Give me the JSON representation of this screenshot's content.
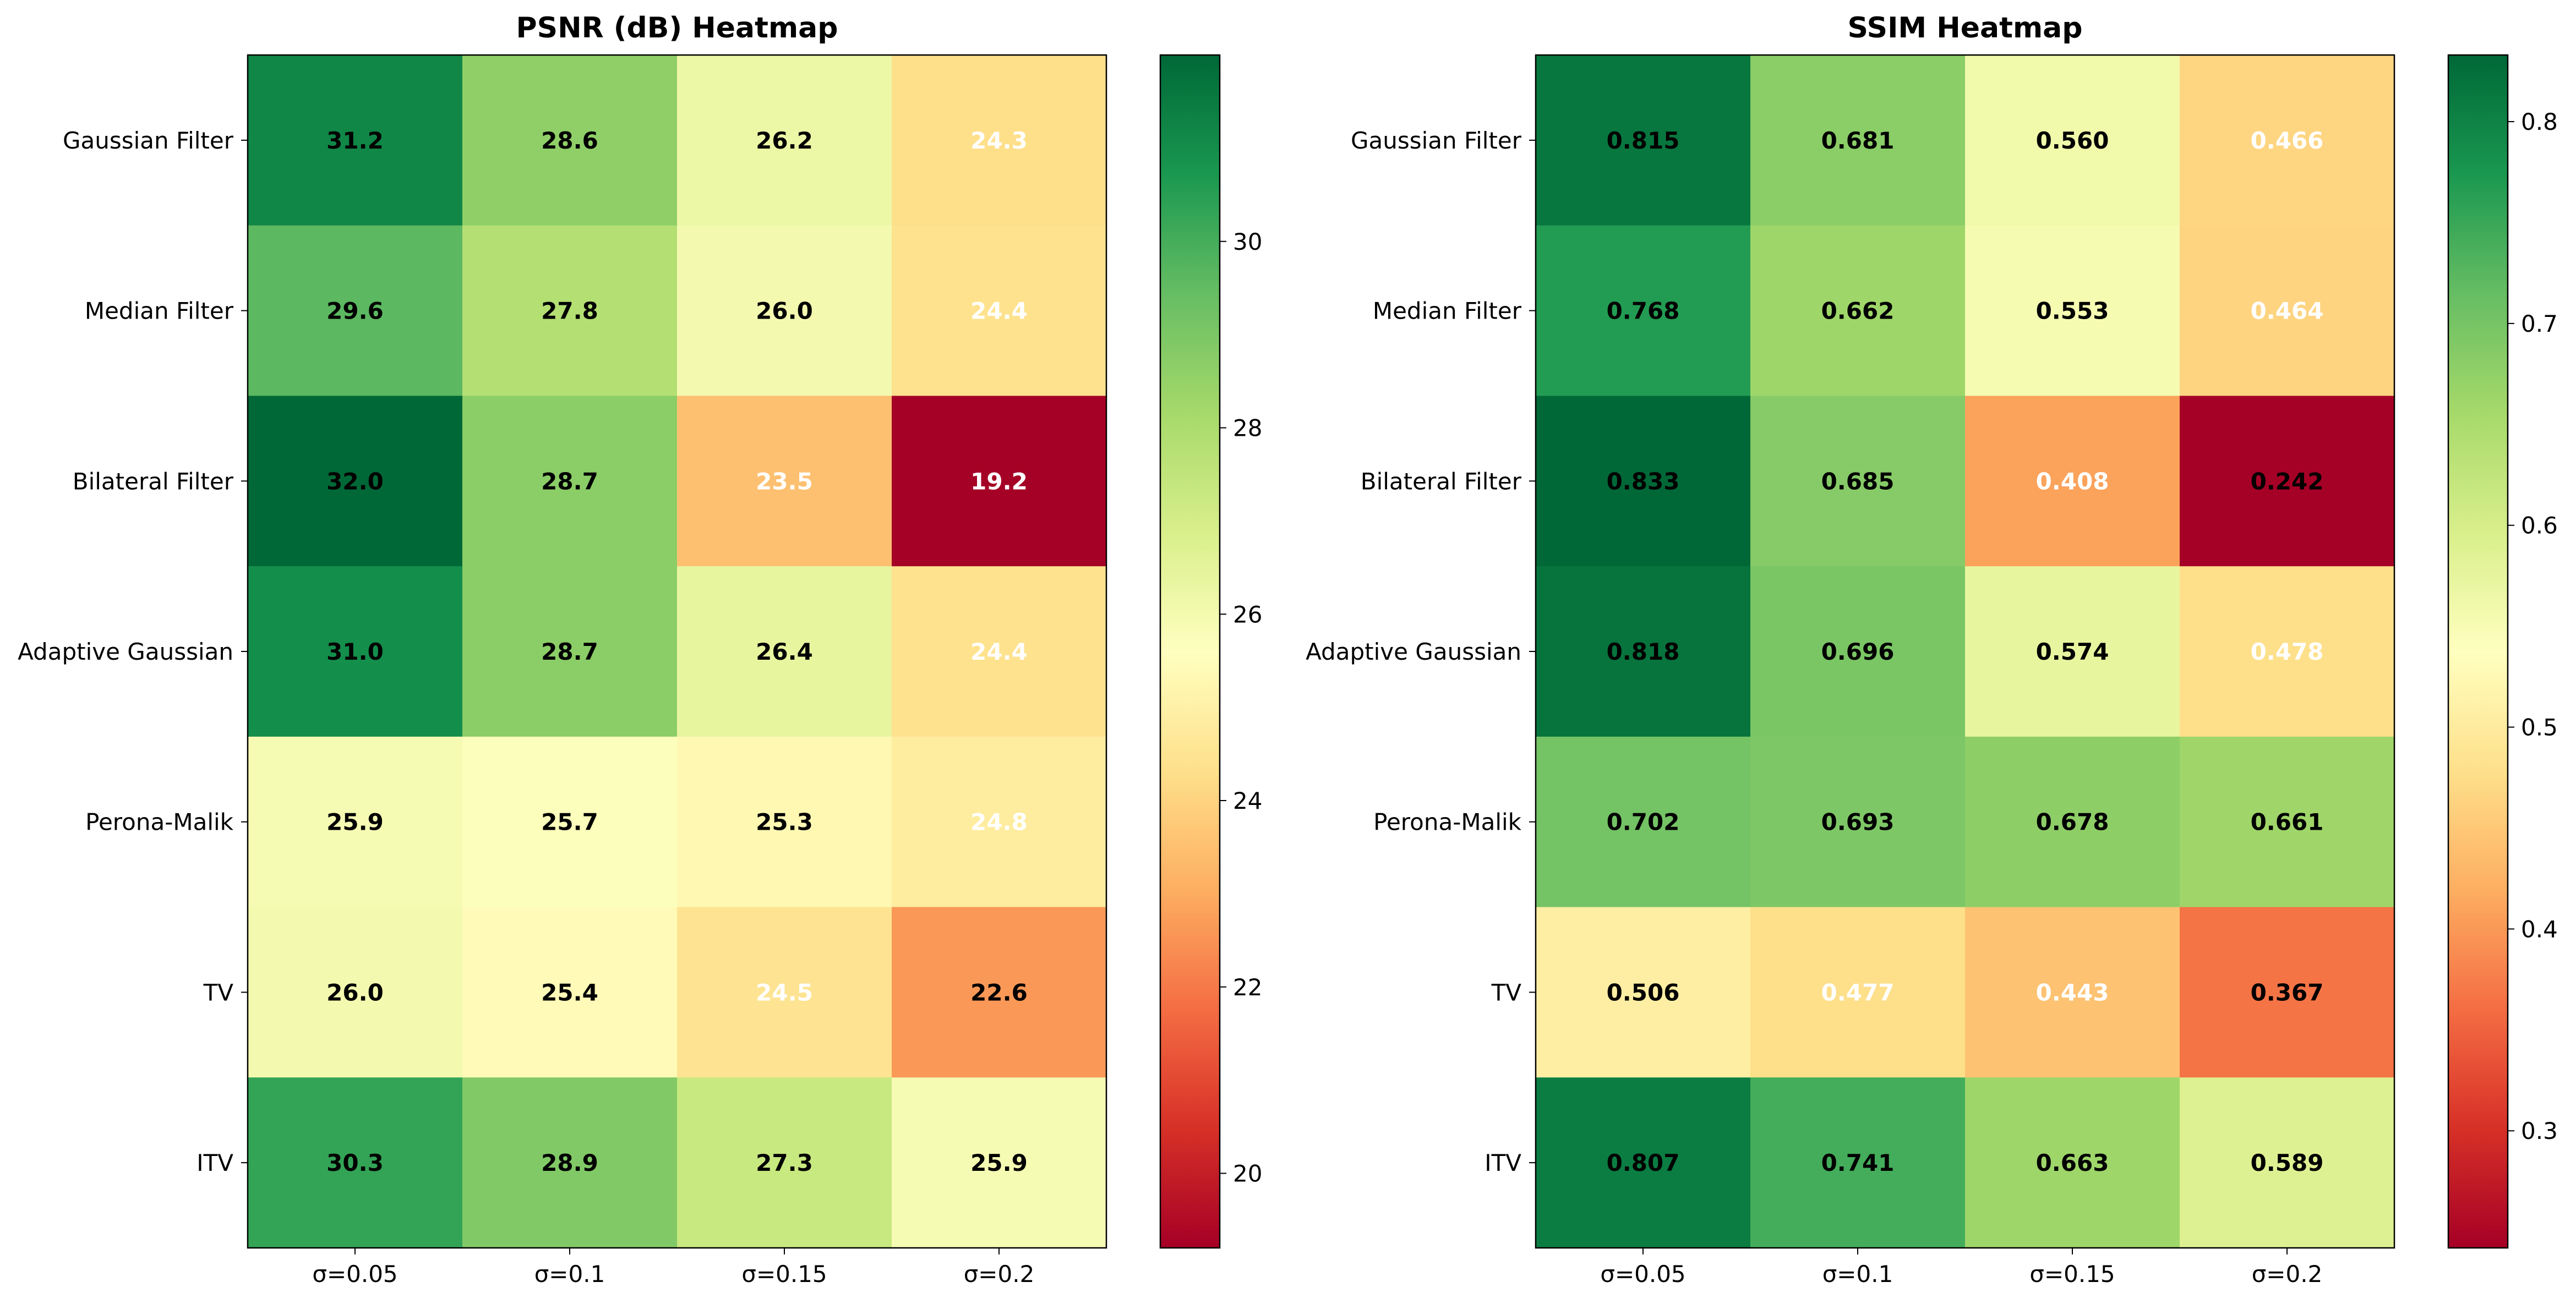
{
  "chart_data": [
    {
      "type": "heatmap",
      "title": "PSNR (dB) Heatmap",
      "rows": [
        "Gaussian Filter",
        "Median Filter",
        "Bilateral Filter",
        "Adaptive Gaussian",
        "Perona-Malik",
        "TV",
        "ITV"
      ],
      "columns": [
        "σ=0.05",
        "σ=0.1",
        "σ=0.15",
        "σ=0.2"
      ],
      "values": [
        [
          31.2,
          28.6,
          26.2,
          24.3
        ],
        [
          29.6,
          27.8,
          26.0,
          24.4
        ],
        [
          32.0,
          28.7,
          23.5,
          19.2
        ],
        [
          31.0,
          28.7,
          26.4,
          24.4
        ],
        [
          25.9,
          25.7,
          25.3,
          24.8
        ],
        [
          26.0,
          25.4,
          24.5,
          22.6
        ],
        [
          30.3,
          28.9,
          27.3,
          25.9
        ]
      ],
      "value_labels": [
        [
          "31.2",
          "28.6",
          "26.2",
          "24.3"
        ],
        [
          "29.6",
          "27.8",
          "26.0",
          "24.4"
        ],
        [
          "32.0",
          "28.7",
          "23.5",
          "19.2"
        ],
        [
          "31.0",
          "28.7",
          "26.4",
          "24.4"
        ],
        [
          "25.9",
          "25.7",
          "25.3",
          "24.8"
        ],
        [
          "26.0",
          "25.4",
          "24.5",
          "22.6"
        ],
        [
          "30.3",
          "28.9",
          "27.3",
          "25.9"
        ]
      ],
      "color_range": [
        19.2,
        32.0
      ],
      "colorbar_ticks": [
        20,
        22,
        24,
        26,
        28,
        30
      ],
      "colorbar_tick_labels": [
        "20",
        "22",
        "24",
        "26",
        "28",
        "30"
      ],
      "colormap": "RdYlGn",
      "label_colors": [
        [
          "#000000",
          "#000000",
          "#000000",
          "#ffffff"
        ],
        [
          "#000000",
          "#000000",
          "#000000",
          "#ffffff"
        ],
        [
          "#000000",
          "#000000",
          "#ffffff",
          "#ffffff"
        ],
        [
          "#000000",
          "#000000",
          "#000000",
          "#ffffff"
        ],
        [
          "#000000",
          "#000000",
          "#000000",
          "#ffffff"
        ],
        [
          "#000000",
          "#000000",
          "#ffffff",
          "#000000"
        ],
        [
          "#000000",
          "#000000",
          "#000000",
          "#000000"
        ]
      ]
    },
    {
      "type": "heatmap",
      "title": "SSIM Heatmap",
      "rows": [
        "Gaussian Filter",
        "Median Filter",
        "Bilateral Filter",
        "Adaptive Gaussian",
        "Perona-Malik",
        "TV",
        "ITV"
      ],
      "columns": [
        "σ=0.05",
        "σ=0.1",
        "σ=0.15",
        "σ=0.2"
      ],
      "values": [
        [
          0.815,
          0.681,
          0.56,
          0.466
        ],
        [
          0.768,
          0.662,
          0.553,
          0.464
        ],
        [
          0.833,
          0.685,
          0.408,
          0.242
        ],
        [
          0.818,
          0.696,
          0.574,
          0.478
        ],
        [
          0.702,
          0.693,
          0.678,
          0.661
        ],
        [
          0.506,
          0.477,
          0.443,
          0.367
        ],
        [
          0.807,
          0.741,
          0.663,
          0.589
        ]
      ],
      "value_labels": [
        [
          "0.815",
          "0.681",
          "0.560",
          "0.466"
        ],
        [
          "0.768",
          "0.662",
          "0.553",
          "0.464"
        ],
        [
          "0.833",
          "0.685",
          "0.408",
          "0.242"
        ],
        [
          "0.818",
          "0.696",
          "0.574",
          "0.478"
        ],
        [
          "0.702",
          "0.693",
          "0.678",
          "0.661"
        ],
        [
          "0.506",
          "0.477",
          "0.443",
          "0.367"
        ],
        [
          "0.807",
          "0.741",
          "0.663",
          "0.589"
        ]
      ],
      "color_range": [
        0.242,
        0.833
      ],
      "colorbar_ticks": [
        0.3,
        0.4,
        0.5,
        0.6,
        0.7,
        0.8
      ],
      "colorbar_tick_labels": [
        "0.3",
        "0.4",
        "0.5",
        "0.6",
        "0.7",
        "0.8"
      ],
      "colormap": "RdYlGn",
      "label_colors": [
        [
          "#000000",
          "#000000",
          "#000000",
          "#ffffff"
        ],
        [
          "#000000",
          "#000000",
          "#000000",
          "#ffffff"
        ],
        [
          "#000000",
          "#000000",
          "#ffffff",
          "#000000"
        ],
        [
          "#000000",
          "#000000",
          "#000000",
          "#ffffff"
        ],
        [
          "#000000",
          "#000000",
          "#000000",
          "#000000"
        ],
        [
          "#000000",
          "#ffffff",
          "#ffffff",
          "#000000"
        ],
        [
          "#000000",
          "#000000",
          "#000000",
          "#000000"
        ]
      ]
    }
  ]
}
